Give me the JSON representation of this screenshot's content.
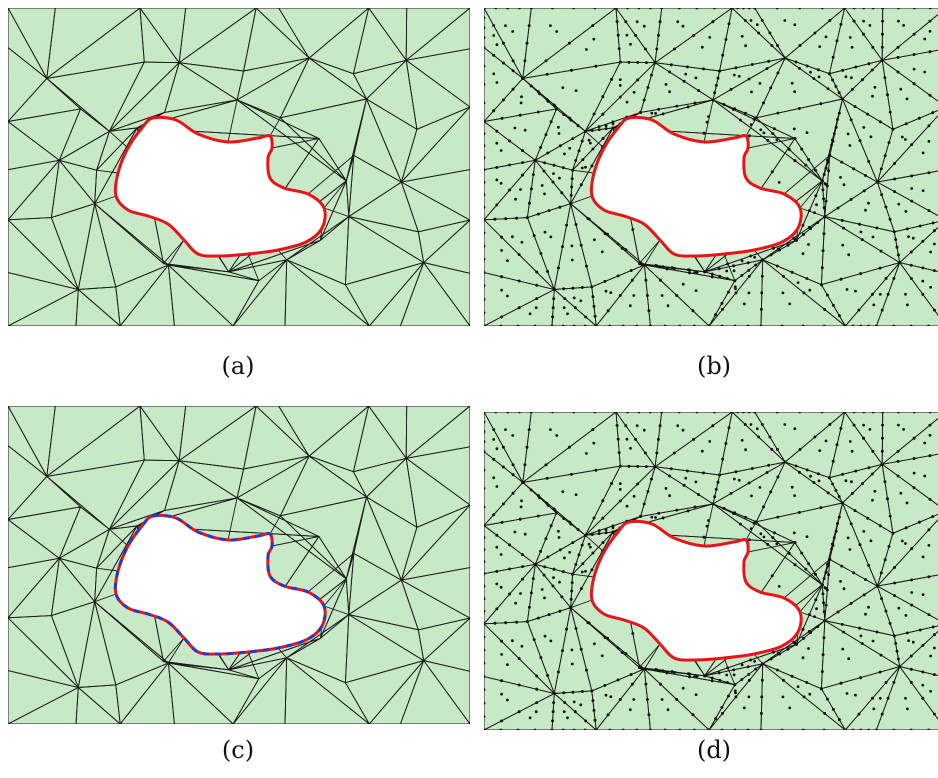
{
  "figure": {
    "panels": [
      {
        "id": "a",
        "caption": "(a)",
        "mesh": "coarse",
        "nodes": false,
        "boundary": "red"
      },
      {
        "id": "b",
        "caption": "(b)",
        "mesh": "coarse",
        "nodes": true,
        "boundary": "red"
      },
      {
        "id": "c",
        "caption": "(c)",
        "mesh": "coarse",
        "nodes": false,
        "boundary": "red-blue-dashed"
      },
      {
        "id": "d",
        "caption": "(d)",
        "mesh": "coarse",
        "nodes": true,
        "boundary": "red"
      }
    ],
    "colors": {
      "domain_fill": "#c8e9c5",
      "mesh_line": "#1a1a1a",
      "boundary": "#e8141a",
      "boundary_alt": "#1f3ad6",
      "hole_fill": "#ffffff",
      "node": "#111111"
    }
  }
}
